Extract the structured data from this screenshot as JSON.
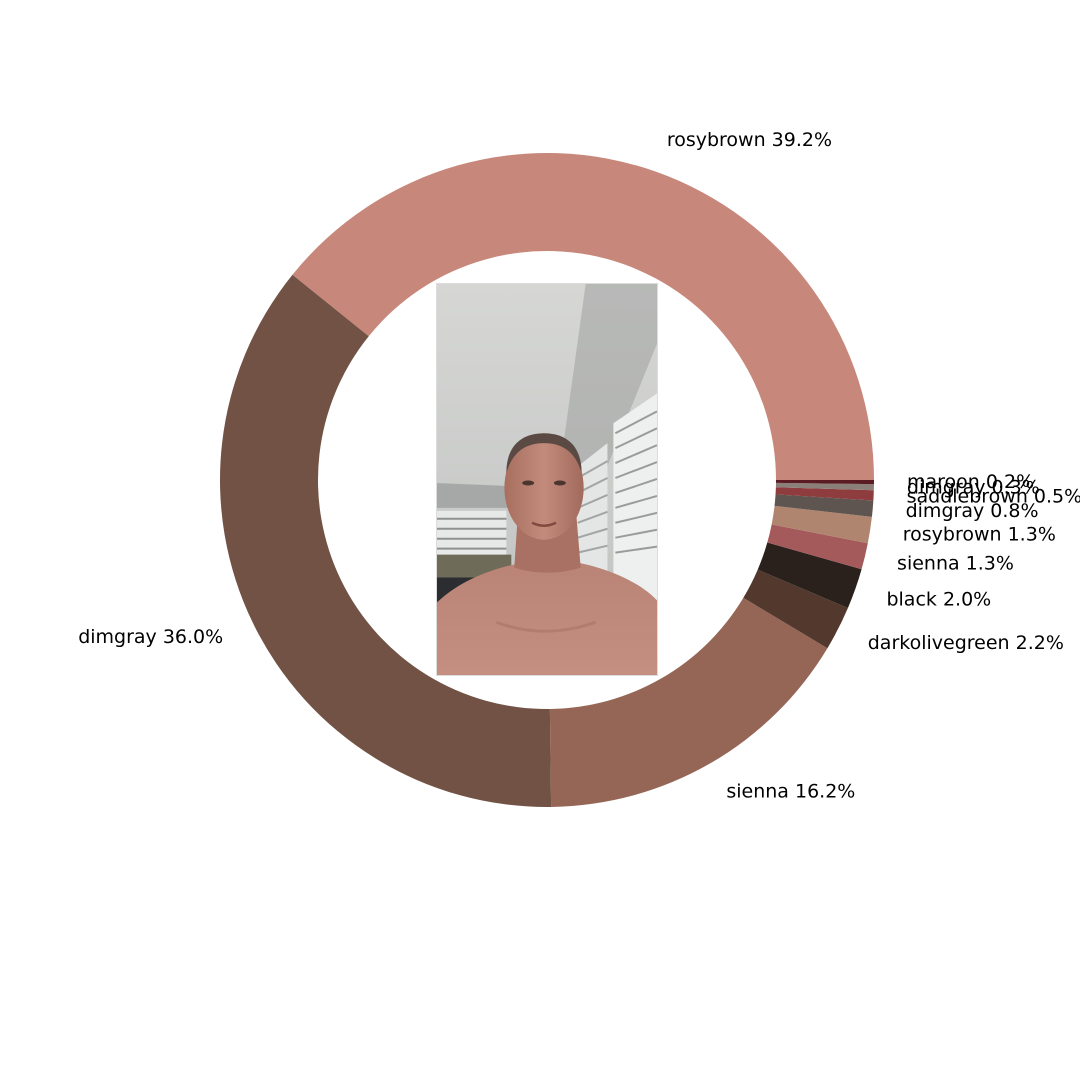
{
  "chart_data": {
    "type": "pie",
    "donut": true,
    "title": "",
    "start_angle_deg": 0,
    "direction": "counterclockwise",
    "slices": [
      {
        "label": "rosybrown",
        "value": 39.2,
        "pct_text": "39.2%",
        "color": "#c7887b"
      },
      {
        "label": "dimgray",
        "value": 36.0,
        "pct_text": "36.0%",
        "color": "#725245"
      },
      {
        "label": "sienna",
        "value": 16.2,
        "pct_text": "16.2%",
        "color": "#956656"
      },
      {
        "label": "darkolivegreen",
        "value": 2.2,
        "pct_text": "2.2%",
        "color": "#53382e"
      },
      {
        "label": "black",
        "value": 2.0,
        "pct_text": "2.0%",
        "color": "#2a201c"
      },
      {
        "label": "sienna",
        "value": 1.3,
        "pct_text": "1.3%",
        "color": "#a45a5a"
      },
      {
        "label": "rosybrown",
        "value": 1.3,
        "pct_text": "1.3%",
        "color": "#b08570"
      },
      {
        "label": "dimgray",
        "value": 0.8,
        "pct_text": "0.8%",
        "color": "#5e5550"
      },
      {
        "label": "saddlebrown",
        "value": 0.5,
        "pct_text": "0.5%",
        "color": "#8f3c3e"
      },
      {
        "label": "dimgray",
        "value": 0.3,
        "pct_text": "0.3%",
        "color": "#8b7f7a"
      },
      {
        "label": "maroon",
        "value": 0.2,
        "pct_text": "0.2%",
        "color": "#5a1c22"
      }
    ]
  },
  "center_image": {
    "icon": "portrait-photo"
  }
}
